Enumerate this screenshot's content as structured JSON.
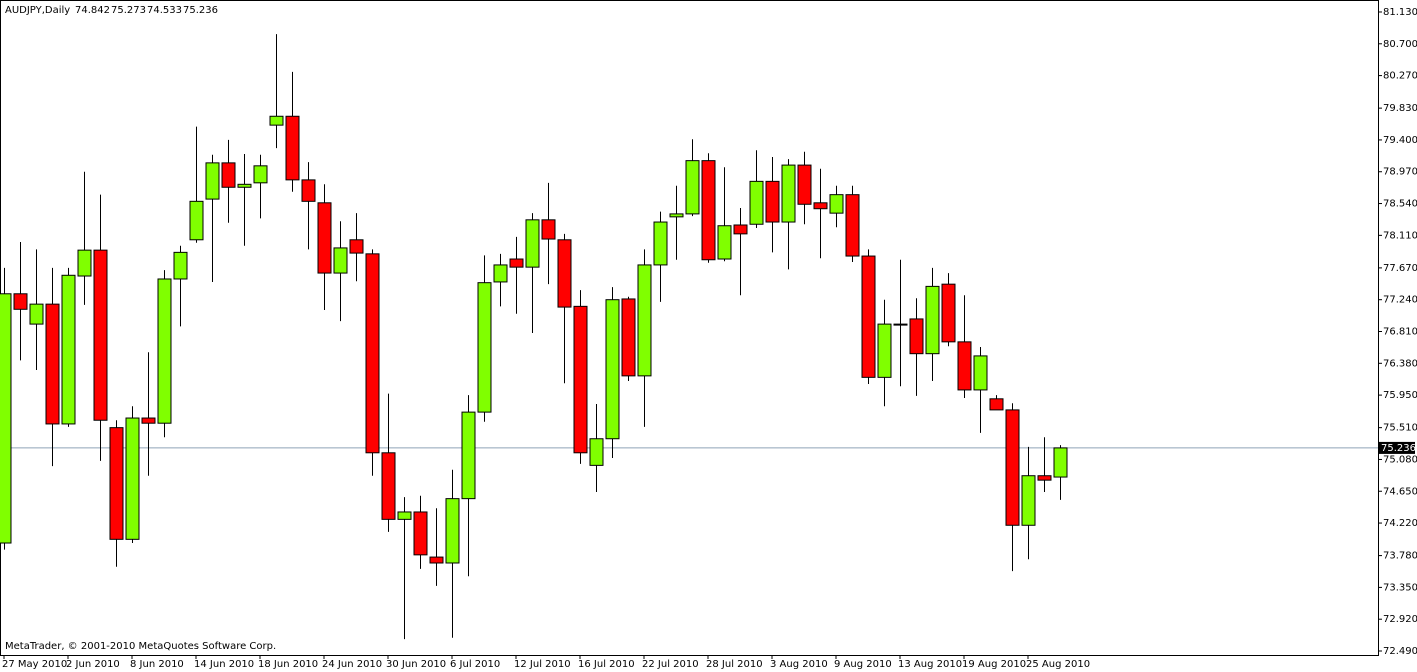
{
  "chart_data": {
    "type": "candlestick",
    "title": "AUDJPY,Daily",
    "footer": "MetaTrader, © 2001-2010 MetaQuotes Software Corp.",
    "categories": [
      "27 May 2010",
      null,
      null,
      null,
      "2 Jun 2010",
      null,
      null,
      null,
      "8 Jun 2010",
      null,
      null,
      null,
      "14 Jun 2010",
      null,
      null,
      null,
      "18 Jun 2010",
      null,
      null,
      null,
      "24 Jun 2010",
      null,
      null,
      null,
      "30 Jun 2010",
      null,
      null,
      null,
      "6 Jul 2010",
      null,
      null,
      null,
      "12 Jul 2010",
      null,
      null,
      null,
      "16 Jul 2010",
      null,
      null,
      null,
      "22 Jul 2010",
      null,
      null,
      null,
      "28 Jul 2010",
      null,
      null,
      null,
      "3 Aug 2010",
      null,
      null,
      null,
      "9 Aug 2010",
      null,
      null,
      null,
      "13 Aug 2010",
      null,
      null,
      null,
      "19 Aug 2010",
      null,
      null,
      null,
      "25 Aug 2010",
      null,
      null
    ],
    "open": [
      73.95,
      77.32,
      76.91,
      77.18,
      75.56,
      77.56,
      77.91,
      75.51,
      74.0,
      75.64,
      75.57,
      77.52,
      78.05,
      78.6,
      79.09,
      78.76,
      78.82,
      79.6,
      79.72,
      78.86,
      78.55,
      77.6,
      78.05,
      77.86,
      75.17,
      74.27,
      74.37,
      73.76,
      73.68,
      74.55,
      75.72,
      77.48,
      77.79,
      77.68,
      78.32,
      78.05,
      77.15,
      75.0,
      75.36,
      77.25,
      76.21,
      77.71,
      78.36,
      78.4,
      79.12,
      77.79,
      78.25,
      78.26,
      78.84,
      78.29,
      79.06,
      78.55,
      78.41,
      78.66,
      77.83,
      76.19,
      76.91,
      76.98,
      76.51,
      77.45,
      76.67,
      76.02,
      75.9,
      75.75,
      74.19,
      74.86,
      74.842
    ],
    "high": [
      77.67,
      78.02,
      77.92,
      77.67,
      77.67,
      78.97,
      78.66,
      75.61,
      75.8,
      76.53,
      77.64,
      77.97,
      79.58,
      79.2,
      79.4,
      79.21,
      79.2,
      80.83,
      80.32,
      79.1,
      78.8,
      78.3,
      78.41,
      77.92,
      75.97,
      74.57,
      74.59,
      74.42,
      74.94,
      75.95,
      77.84,
      77.86,
      78.09,
      78.41,
      78.82,
      78.13,
      77.37,
      75.83,
      77.41,
      77.28,
      77.92,
      78.43,
      78.78,
      79.41,
      79.22,
      79.03,
      78.48,
      79.26,
      79.17,
      79.14,
      79.24,
      79.01,
      78.78,
      78.78,
      77.92,
      77.24,
      77.78,
      77.26,
      77.67,
      77.6,
      77.3,
      76.6,
      75.95,
      75.84,
      75.25,
      75.38,
      75.273
    ],
    "low": [
      73.86,
      76.42,
      76.29,
      74.99,
      75.52,
      77.17,
      75.06,
      73.63,
      73.95,
      74.86,
      75.38,
      76.88,
      78.01,
      77.48,
      78.28,
      77.97,
      78.34,
      79.29,
      78.7,
      77.92,
      77.1,
      76.95,
      77.49,
      74.86,
      74.1,
      72.65,
      73.6,
      73.37,
      72.67,
      73.5,
      75.59,
      77.15,
      77.05,
      76.79,
      77.45,
      76.11,
      75.02,
      74.64,
      75.1,
      76.14,
      75.52,
      77.21,
      77.78,
      78.37,
      77.74,
      77.76,
      77.3,
      78.21,
      77.88,
      77.65,
      78.26,
      77.8,
      78.22,
      77.75,
      76.1,
      75.8,
      76.07,
      75.94,
      76.14,
      76.61,
      75.91,
      75.44,
      75.75,
      73.57,
      73.73,
      74.64,
      74.533
    ],
    "close": [
      77.32,
      77.11,
      77.18,
      75.56,
      77.57,
      77.91,
      75.61,
      74.0,
      75.64,
      75.57,
      77.52,
      77.88,
      78.57,
      79.09,
      78.76,
      78.8,
      79.05,
      79.72,
      78.86,
      78.57,
      77.6,
      77.94,
      77.87,
      75.17,
      74.27,
      74.37,
      73.79,
      73.68,
      74.55,
      75.72,
      77.47,
      77.71,
      77.68,
      78.32,
      78.06,
      77.14,
      75.17,
      75.36,
      77.24,
      76.21,
      77.71,
      78.29,
      78.4,
      79.12,
      77.78,
      78.24,
      78.13,
      78.84,
      78.29,
      79.06,
      78.53,
      78.47,
      78.66,
      77.83,
      76.19,
      76.91,
      76.91,
      76.51,
      77.42,
      76.67,
      76.02,
      76.48,
      75.75,
      74.19,
      74.86,
      74.8,
      75.236
    ],
    "up_color": "#80ff00",
    "down_color": "#ff0000",
    "ylim": [
      72.436,
      81.292
    ],
    "yticks": [
      {
        "value": 81.13,
        "label": "81.130"
      },
      {
        "value": 80.7,
        "label": "80.700"
      },
      {
        "value": 80.27,
        "label": "80.270"
      },
      {
        "value": 79.83,
        "label": "79.830"
      },
      {
        "value": 79.4,
        "label": "79.400"
      },
      {
        "value": 78.97,
        "label": "78.970"
      },
      {
        "value": 78.54,
        "label": "78.540"
      },
      {
        "value": 78.11,
        "label": "78.110"
      },
      {
        "value": 77.67,
        "label": "77.670"
      },
      {
        "value": 77.24,
        "label": "77.240"
      },
      {
        "value": 76.81,
        "label": "76.810"
      },
      {
        "value": 76.38,
        "label": "76.380"
      },
      {
        "value": 75.95,
        "label": "75.950"
      },
      {
        "value": 75.51,
        "label": "75.510"
      },
      {
        "value": 75.08,
        "label": "75.080"
      },
      {
        "value": 74.65,
        "label": "74.650"
      },
      {
        "value": 74.22,
        "label": "74.220"
      },
      {
        "value": 73.78,
        "label": "73.780"
      },
      {
        "value": 73.35,
        "label": "73.350"
      },
      {
        "value": 72.92,
        "label": "72.920"
      },
      {
        "value": 72.49,
        "label": "72.490"
      }
    ],
    "grid": false
  }
}
